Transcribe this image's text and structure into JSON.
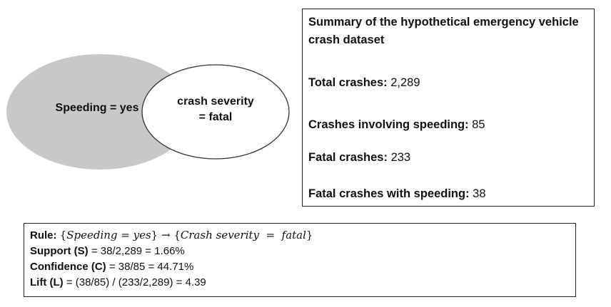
{
  "diagram": {
    "outer_circle_label": "Speeding = yes",
    "inner_circle_label_line1": "crash severity",
    "inner_circle_label_line2": "= fatal",
    "colors": {
      "outer_fill": "#c8c8c8",
      "inner_fill": "#ffffff",
      "stroke": "#333333"
    }
  },
  "summary": {
    "title": "Summary of the hypothetical emergency vehicle crash dataset",
    "items": [
      {
        "label": "Total crashes:",
        "value": "2,289"
      },
      {
        "label": "Crashes involving speeding:",
        "value": "85"
      },
      {
        "label": "Fatal crashes:",
        "value": "233"
      },
      {
        "label": "Fatal crashes with speeding:",
        "value": "38"
      }
    ]
  },
  "rule": {
    "rule_label": "Rule:",
    "rule_lhs": "Speeding = yes",
    "rule_arrow": "→",
    "rule_rhs": "Crash severity  =  fatal",
    "support_label": "Support (S)",
    "support_formula": "= 38/2,289 = 1.66%",
    "confidence_label": "Confidence (C)",
    "confidence_formula": "= 38/85 = 44.71%",
    "lift_label": "Lift (L)",
    "lift_formula": "= (38/85) / (233/2,289) = 4.39"
  }
}
